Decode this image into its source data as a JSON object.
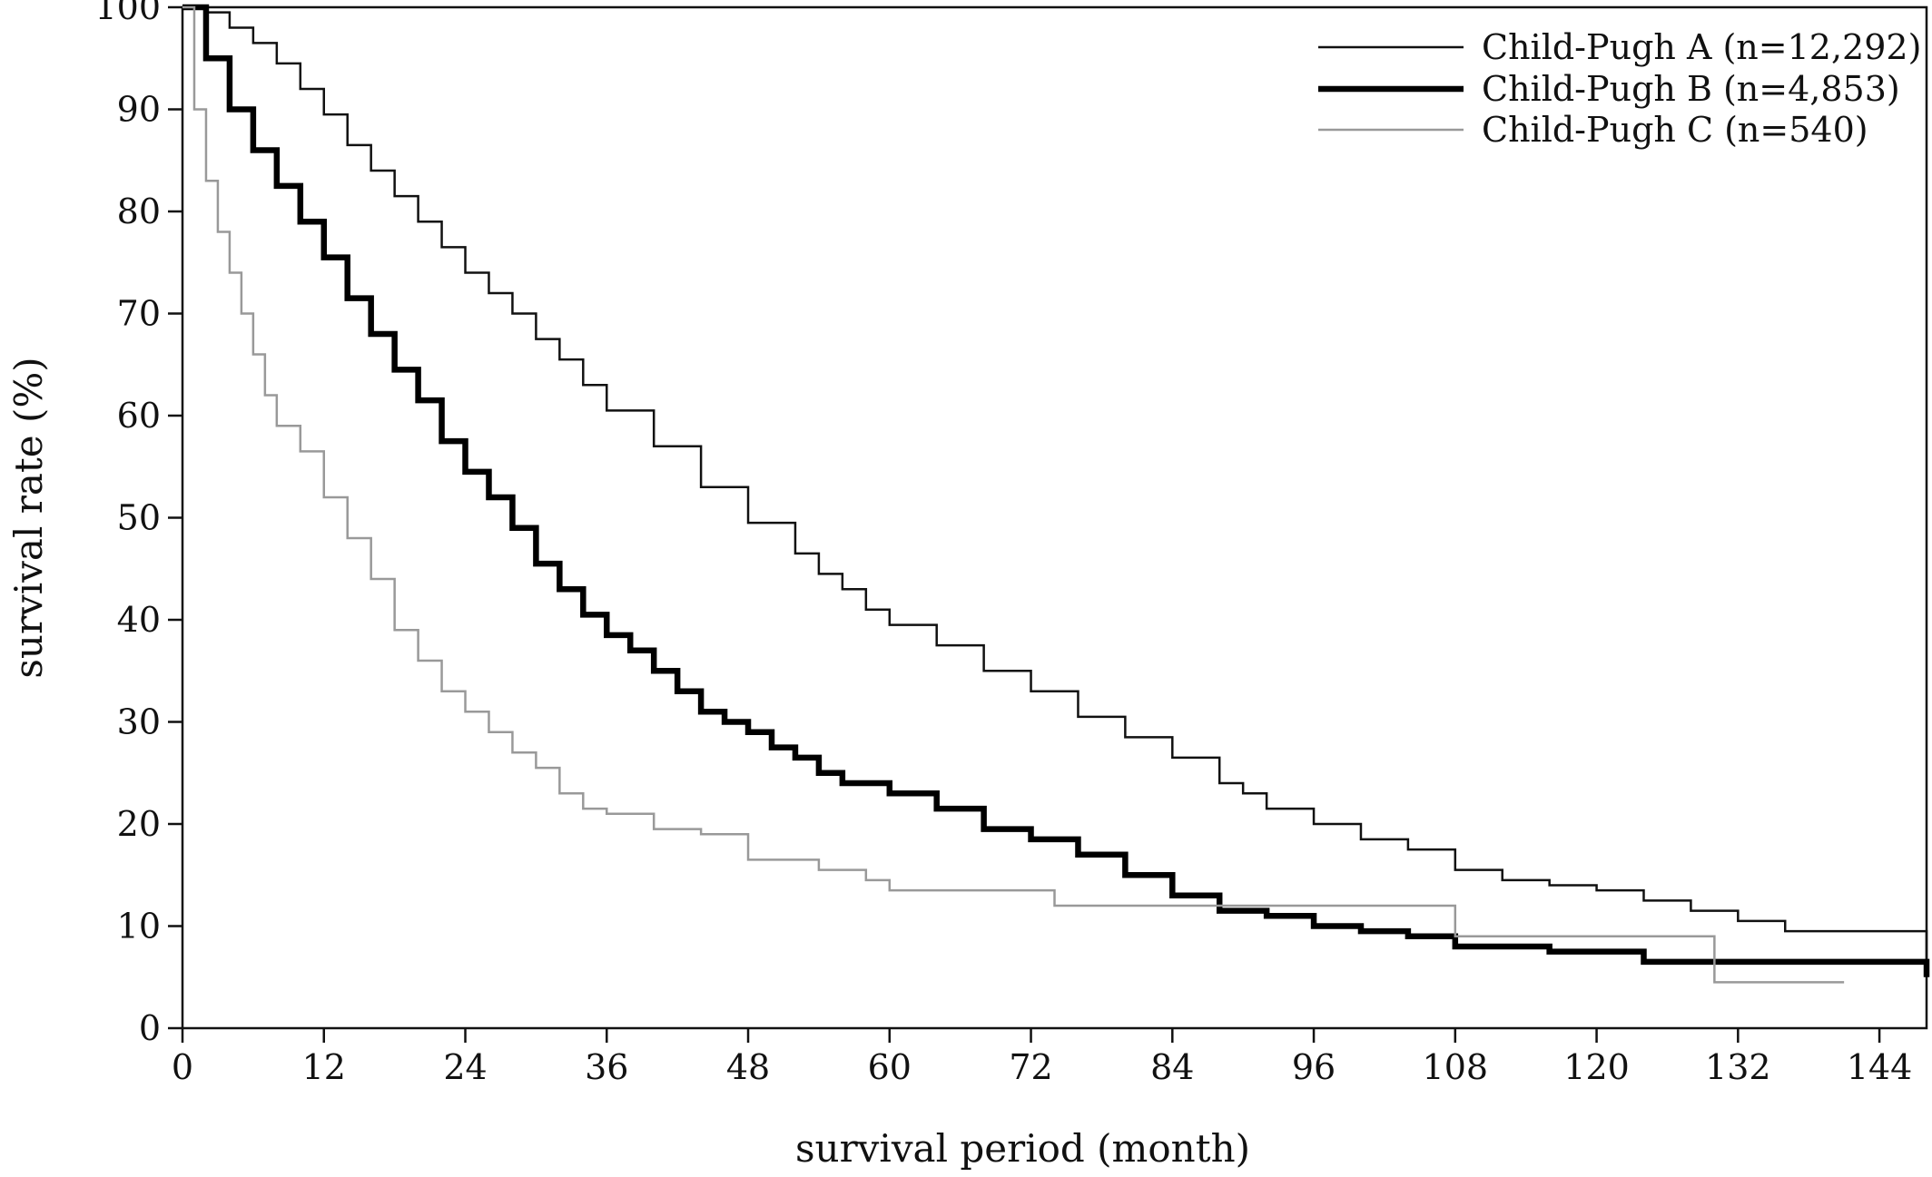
{
  "chart_data": {
    "type": "line",
    "title": "",
    "xlabel": "survival period (month)",
    "ylabel": "survival rate (%)",
    "xlim": [
      0,
      148
    ],
    "ylim": [
      0,
      100
    ],
    "xticks": [
      0,
      12,
      24,
      36,
      48,
      60,
      72,
      84,
      96,
      108,
      120,
      132,
      144
    ],
    "yticks": [
      0,
      10,
      20,
      30,
      40,
      50,
      60,
      70,
      80,
      90,
      100
    ],
    "grid": false,
    "legend_position": "top-right",
    "step": true,
    "series": [
      {
        "name": "Child-Pugh A (n=12,292)",
        "color": "#111111",
        "weight": "thin",
        "points": [
          [
            0,
            100
          ],
          [
            2,
            99.5
          ],
          [
            4,
            98
          ],
          [
            6,
            96.5
          ],
          [
            8,
            94.5
          ],
          [
            10,
            92
          ],
          [
            12,
            89.5
          ],
          [
            14,
            86.5
          ],
          [
            16,
            84
          ],
          [
            18,
            81.5
          ],
          [
            20,
            79
          ],
          [
            22,
            76.5
          ],
          [
            24,
            74
          ],
          [
            26,
            72
          ],
          [
            28,
            70
          ],
          [
            30,
            67.5
          ],
          [
            32,
            65.5
          ],
          [
            34,
            63
          ],
          [
            36,
            60.5
          ],
          [
            40,
            57
          ],
          [
            44,
            53
          ],
          [
            48,
            49.5
          ],
          [
            52,
            46.5
          ],
          [
            54,
            44.5
          ],
          [
            56,
            43
          ],
          [
            58,
            41
          ],
          [
            60,
            39.5
          ],
          [
            64,
            37.5
          ],
          [
            68,
            35
          ],
          [
            72,
            33
          ],
          [
            76,
            30.5
          ],
          [
            80,
            28.5
          ],
          [
            84,
            26.5
          ],
          [
            88,
            24
          ],
          [
            90,
            23
          ],
          [
            92,
            21.5
          ],
          [
            96,
            20
          ],
          [
            100,
            18.5
          ],
          [
            104,
            17.5
          ],
          [
            108,
            15.5
          ],
          [
            112,
            14.5
          ],
          [
            116,
            14
          ],
          [
            120,
            13.5
          ],
          [
            124,
            12.5
          ],
          [
            128,
            11.5
          ],
          [
            132,
            10.5
          ],
          [
            136,
            9.5
          ],
          [
            148,
            9
          ],
          [
            148,
            5
          ]
        ]
      },
      {
        "name": "Child-Pugh B (n=4,853)",
        "color": "#000000",
        "weight": "thick",
        "points": [
          [
            0,
            100
          ],
          [
            2,
            95
          ],
          [
            4,
            90
          ],
          [
            6,
            86
          ],
          [
            8,
            82.5
          ],
          [
            10,
            79
          ],
          [
            12,
            75.5
          ],
          [
            14,
            71.5
          ],
          [
            16,
            68
          ],
          [
            18,
            64.5
          ],
          [
            20,
            61.5
          ],
          [
            22,
            57.5
          ],
          [
            24,
            54.5
          ],
          [
            26,
            52
          ],
          [
            28,
            49
          ],
          [
            30,
            45.5
          ],
          [
            32,
            43
          ],
          [
            34,
            40.5
          ],
          [
            36,
            38.5
          ],
          [
            38,
            37
          ],
          [
            40,
            35
          ],
          [
            42,
            33
          ],
          [
            44,
            31
          ],
          [
            46,
            30
          ],
          [
            48,
            29
          ],
          [
            50,
            27.5
          ],
          [
            52,
            26.5
          ],
          [
            54,
            25
          ],
          [
            56,
            24
          ],
          [
            60,
            23
          ],
          [
            64,
            21.5
          ],
          [
            68,
            19.5
          ],
          [
            72,
            18.5
          ],
          [
            76,
            17
          ],
          [
            80,
            15
          ],
          [
            84,
            13
          ],
          [
            88,
            11.5
          ],
          [
            92,
            11
          ],
          [
            96,
            10
          ],
          [
            100,
            9.5
          ],
          [
            104,
            9
          ],
          [
            108,
            8
          ],
          [
            112,
            8
          ],
          [
            116,
            7.5
          ],
          [
            120,
            7.5
          ],
          [
            124,
            7.5
          ],
          [
            124,
            6.5
          ],
          [
            148,
            6.5
          ],
          [
            148,
            5
          ]
        ]
      },
      {
        "name": "Child-Pugh C (n=540)",
        "color": "#999999",
        "weight": "thin",
        "points": [
          [
            0,
            100
          ],
          [
            1,
            90
          ],
          [
            2,
            83
          ],
          [
            3,
            78
          ],
          [
            4,
            74
          ],
          [
            5,
            70
          ],
          [
            6,
            66
          ],
          [
            7,
            62
          ],
          [
            8,
            59
          ],
          [
            10,
            56.5
          ],
          [
            12,
            52
          ],
          [
            14,
            48
          ],
          [
            16,
            44
          ],
          [
            18,
            39
          ],
          [
            20,
            36
          ],
          [
            22,
            33
          ],
          [
            24,
            31
          ],
          [
            26,
            29
          ],
          [
            28,
            27
          ],
          [
            30,
            25.5
          ],
          [
            32,
            23
          ],
          [
            34,
            21.5
          ],
          [
            36,
            21
          ],
          [
            40,
            19.5
          ],
          [
            44,
            19
          ],
          [
            48,
            16.5
          ],
          [
            54,
            15.5
          ],
          [
            58,
            14.5
          ],
          [
            60,
            13.5
          ],
          [
            74,
            13.5
          ],
          [
            74,
            12
          ],
          [
            108,
            12
          ],
          [
            108,
            9
          ],
          [
            130,
            9
          ],
          [
            130,
            4.5
          ],
          [
            141,
            4.5
          ]
        ]
      }
    ]
  }
}
